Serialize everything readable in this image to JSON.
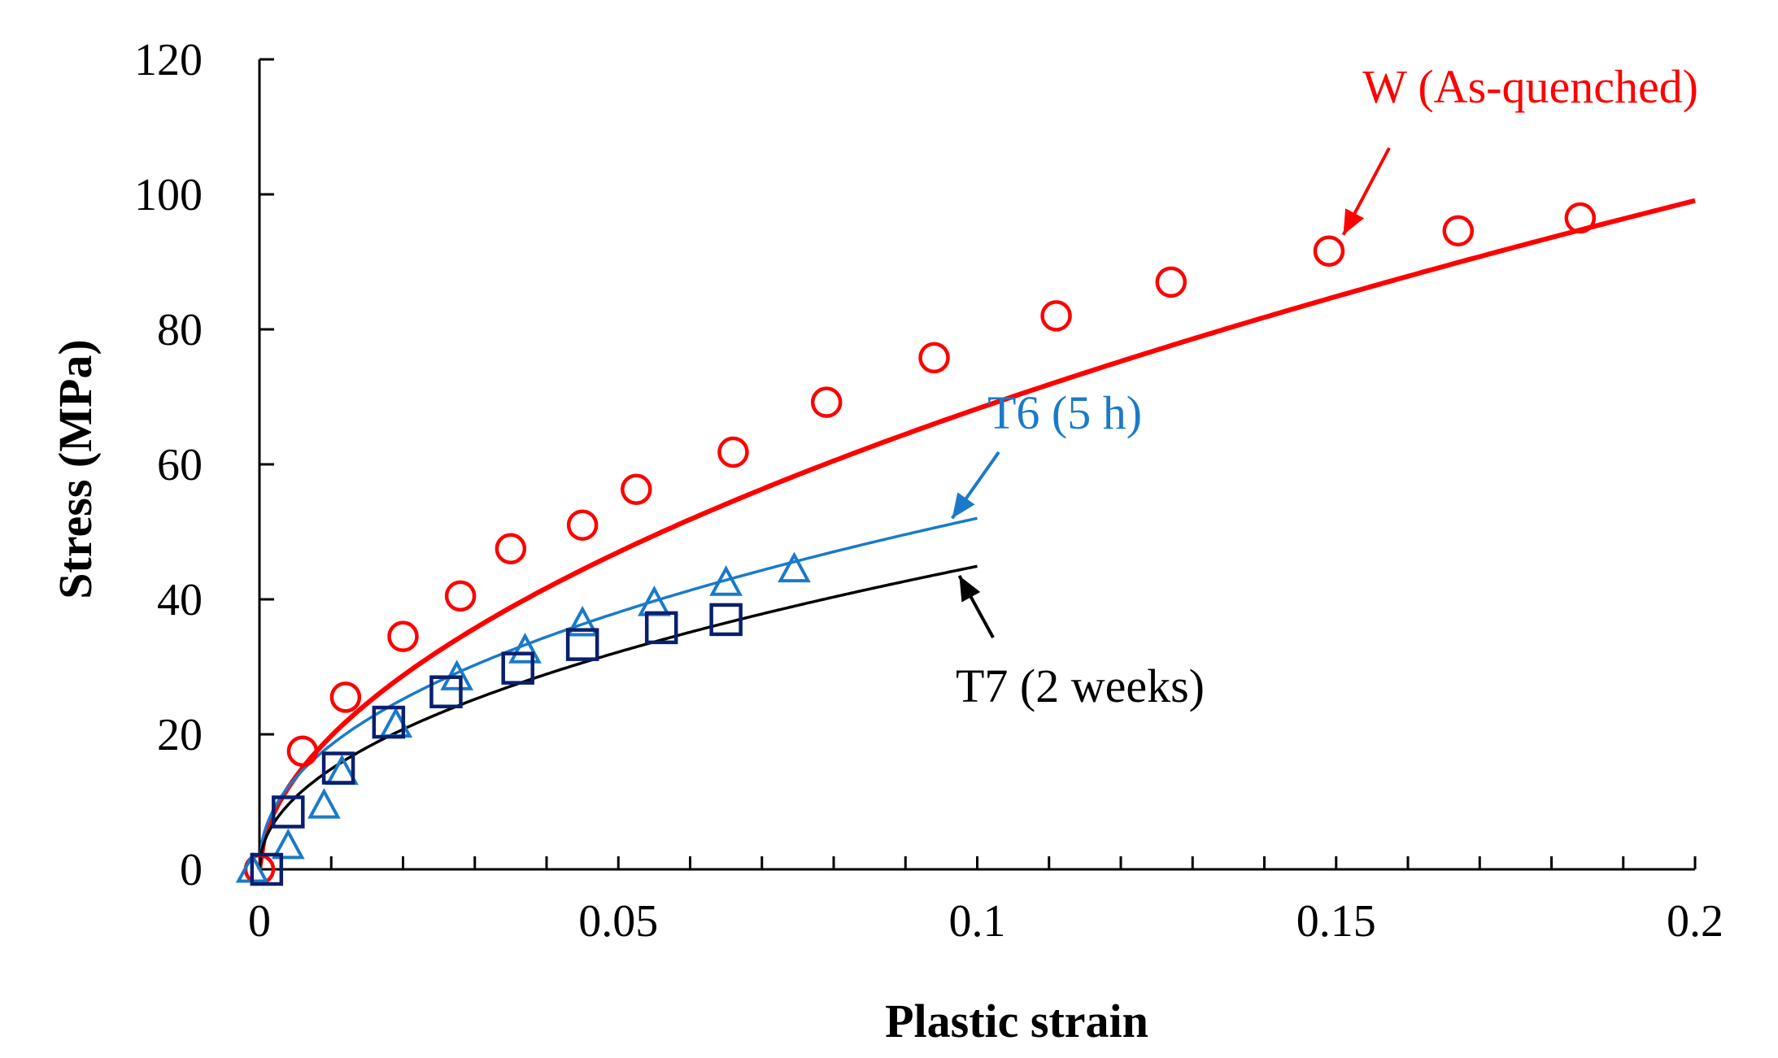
{
  "chart_data": {
    "type": "scatter",
    "title": "",
    "xlabel": "Plastic strain",
    "ylabel": "Stress (MPa)",
    "xlim": [
      0,
      0.2
    ],
    "ylim": [
      0,
      120
    ],
    "xticks": [
      0,
      0.05,
      0.1,
      0.15,
      0.2
    ],
    "xtick_labels": [
      "0",
      "0.05",
      "0.1",
      "0.15",
      "0.2"
    ],
    "yticks": [
      0,
      20,
      40,
      60,
      80,
      100,
      120
    ],
    "ytick_labels": [
      "0",
      "20",
      "40",
      "60",
      "80",
      "100",
      "120"
    ],
    "x_minor_step": 0.01,
    "grid": false,
    "series": [
      {
        "name": "W (As-quenched)",
        "color": "#ff0000",
        "marker": "circle",
        "points": [
          [
            0.0,
            0.0
          ],
          [
            0.006,
            17.5
          ],
          [
            0.012,
            25.5
          ],
          [
            0.02,
            34.5
          ],
          [
            0.028,
            40.5
          ],
          [
            0.035,
            47.5
          ],
          [
            0.045,
            51.0
          ],
          [
            0.0525,
            56.3
          ],
          [
            0.066,
            61.8
          ],
          [
            0.079,
            69.2
          ],
          [
            0.094,
            75.8
          ],
          [
            0.111,
            82.0
          ],
          [
            0.127,
            87.0
          ],
          [
            0.149,
            91.6
          ],
          [
            0.167,
            94.6
          ],
          [
            0.184,
            96.5
          ]
        ],
        "fit": {
          "equation": "k*x^n",
          "k": 235.5,
          "n": 0.538,
          "x_max": 0.2,
          "line_width": 6
        }
      },
      {
        "name": "T6 (5 h)",
        "color": "#1a7ac9",
        "marker": "triangle",
        "points": [
          [
            -0.001,
            0.0
          ],
          [
            0.004,
            3.5
          ],
          [
            0.009,
            9.5
          ],
          [
            0.0115,
            14.5
          ],
          [
            0.019,
            21.5
          ],
          [
            0.0275,
            28.5
          ],
          [
            0.037,
            32.5
          ],
          [
            0.045,
            36.5
          ],
          [
            0.055,
            39.5
          ],
          [
            0.065,
            42.5
          ],
          [
            0.0745,
            44.5
          ]
        ],
        "fit": {
          "equation": "k*x^n",
          "k": 146.6,
          "n": 0.45,
          "x_max": 0.1,
          "line_width": 3.5
        }
      },
      {
        "name": "T7 (2 weeks)",
        "color": "#0a1f6e",
        "marker": "square",
        "points": [
          [
            0.001,
            0.0
          ],
          [
            0.004,
            8.5
          ],
          [
            0.011,
            15.0
          ],
          [
            0.018,
            21.8
          ],
          [
            0.026,
            26.3
          ],
          [
            0.036,
            29.8
          ],
          [
            0.045,
            33.3
          ],
          [
            0.056,
            35.8
          ],
          [
            0.065,
            37.0
          ]
        ],
        "fit": {
          "equation": "k*x^n",
          "k": 135.6,
          "n": 0.48,
          "x_max": 0.1,
          "line_width": 3.5,
          "color": "#000000"
        }
      }
    ],
    "annotations": [
      {
        "text": "W (As-quenched)",
        "color": "#ff0000",
        "arrow_to": [
          0.151,
          94.0
        ]
      },
      {
        "text": "T6 (5 h)",
        "color": "#1a7ac9",
        "arrow_to": [
          0.0965,
          52.0
        ]
      },
      {
        "text": "T7 (2 weeks)",
        "color": "#000000",
        "arrow_to": [
          0.0975,
          43.5
        ]
      }
    ]
  }
}
